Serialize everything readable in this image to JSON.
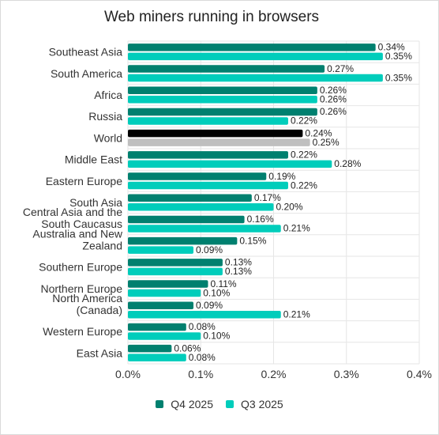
{
  "chart_data": {
    "type": "bar",
    "orientation": "horizontal",
    "title": "Web miners running in browsers",
    "categories": [
      "Southeast Asia",
      "South America",
      "Africa",
      "Russia",
      "World",
      "Middle East",
      "Eastern Europe",
      "South Asia",
      "Central Asia and the South Caucasus",
      "Australia and New Zealand",
      "Southern Europe",
      "Northern Europe",
      "North America (Canada)",
      "Western Europe",
      "East Asia"
    ],
    "category_lines": [
      [
        "Southeast Asia"
      ],
      [
        "South America"
      ],
      [
        "Africa"
      ],
      [
        "Russia"
      ],
      [
        "World"
      ],
      [
        "Middle East"
      ],
      [
        "Eastern Europe"
      ],
      [
        "South Asia"
      ],
      [
        "Central Asia and the",
        "South Caucasus"
      ],
      [
        "Australia and New",
        "Zealand"
      ],
      [
        "Southern Europe"
      ],
      [
        "Northern Europe"
      ],
      [
        "North America",
        "(Canada)"
      ],
      [
        "Western Europe"
      ],
      [
        "East Asia"
      ]
    ],
    "series": [
      {
        "name": "Q4 2025",
        "color": "#00806f",
        "values": [
          0.34,
          0.27,
          0.26,
          0.26,
          0.24,
          0.22,
          0.19,
          0.17,
          0.16,
          0.15,
          0.13,
          0.11,
          0.09,
          0.08,
          0.06
        ]
      },
      {
        "name": "Q3 2025",
        "color": "#00cdbb",
        "values": [
          0.35,
          0.35,
          0.26,
          0.22,
          0.25,
          0.28,
          0.22,
          0.2,
          0.21,
          0.09,
          0.13,
          0.1,
          0.21,
          0.1,
          0.08
        ]
      }
    ],
    "highlight": {
      "category": "World",
      "colors": [
        "#000000",
        "#bfbfbf"
      ]
    },
    "value_labels": [
      [
        "0.34%",
        "0.27%",
        "0.26%",
        "0.26%",
        "0.24%",
        "0.22%",
        "0.19%",
        "0.17%",
        "0.16%",
        "0.15%",
        "0.13%",
        "0.11%",
        "0.09%",
        "0.08%",
        "0.06%"
      ],
      [
        "0.35%",
        "0.35%",
        "0.26%",
        "0.22%",
        "0.25%",
        "0.28%",
        "0.22%",
        "0.20%",
        "0.21%",
        "0.09%",
        "0.13%",
        "0.10%",
        "0.21%",
        "0.10%",
        "0.08%"
      ]
    ],
    "xlim": [
      0,
      0.4
    ],
    "xticks": [
      0,
      0.1,
      0.2,
      0.3,
      0.4
    ],
    "xtick_labels": [
      "0.0%",
      "0.1%",
      "0.2%",
      "0.3%",
      "0.4%"
    ],
    "grid": true,
    "legend_position": "bottom"
  }
}
